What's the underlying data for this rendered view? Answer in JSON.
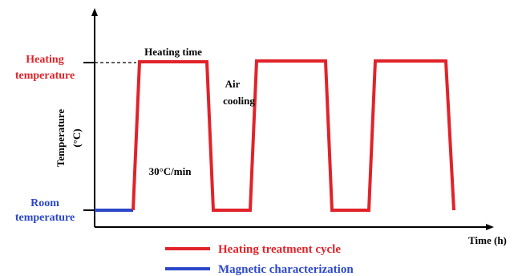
{
  "colors": {
    "heating": "#e0232a",
    "magnetic": "#2b47c9",
    "axis": "#000000"
  },
  "labels": {
    "heating_temperature_line1": "Heating",
    "heating_temperature_line2": "temperature",
    "room_temperature_line1": "Room",
    "room_temperature_line2": "temperature",
    "y_axis_line1": "Temperature",
    "y_axis_line2": "(°C)",
    "x_axis": "Time (h)",
    "heating_time": "Heating time",
    "air_cooling_line1": "Air",
    "air_cooling_line2": "cooling",
    "rate": "30°C/min"
  },
  "legend": [
    {
      "label": "Heating treatment cycle",
      "color": "#e0232a"
    },
    {
      "label": "Magnetic characterization",
      "color": "#2b47c9"
    }
  ]
}
